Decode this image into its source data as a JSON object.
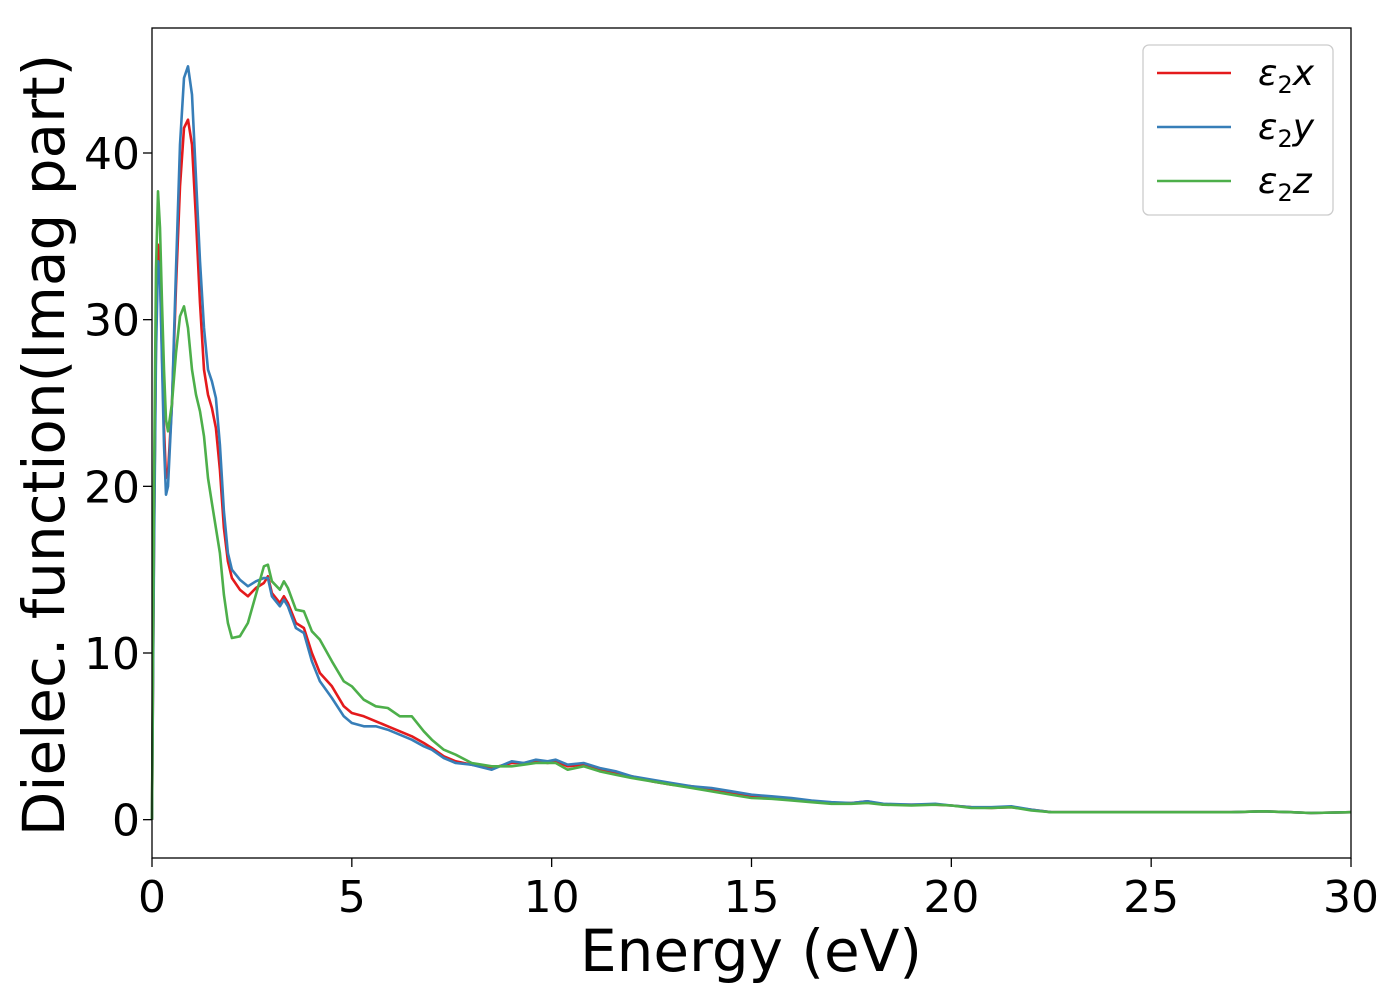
{
  "chart_data": {
    "type": "line",
    "title": "",
    "xlabel": "Energy (eV)",
    "ylabel": "Dielec. function(Imag part)",
    "xlim": [
      0,
      30
    ],
    "ylim": [
      -2.3,
      47.5
    ],
    "xticks": [
      0,
      5,
      10,
      15,
      20,
      25,
      30
    ],
    "yticks": [
      0,
      10,
      20,
      30,
      40
    ],
    "grid": false,
    "legend_position": "top-right",
    "series": [
      {
        "name": "ε2x",
        "legend_base": "ε",
        "legend_sub": "2",
        "legend_var": "x",
        "color": "#e41a1c",
        "points": [
          [
            0,
            0
          ],
          [
            0.05,
            17
          ],
          [
            0.1,
            29
          ],
          [
            0.15,
            34.5
          ],
          [
            0.2,
            33
          ],
          [
            0.25,
            28
          ],
          [
            0.3,
            23.5
          ],
          [
            0.35,
            20.5
          ],
          [
            0.4,
            20.8
          ],
          [
            0.5,
            25
          ],
          [
            0.6,
            32
          ],
          [
            0.7,
            38
          ],
          [
            0.8,
            41.5
          ],
          [
            0.9,
            42
          ],
          [
            1.0,
            40.5
          ],
          [
            1.1,
            36
          ],
          [
            1.2,
            31
          ],
          [
            1.3,
            27
          ],
          [
            1.4,
            25.5
          ],
          [
            1.5,
            24.7
          ],
          [
            1.6,
            23.5
          ],
          [
            1.7,
            21
          ],
          [
            1.8,
            17.5
          ],
          [
            1.9,
            15.5
          ],
          [
            2.0,
            14.5
          ],
          [
            2.2,
            13.8
          ],
          [
            2.4,
            13.4
          ],
          [
            2.6,
            13.9
          ],
          [
            2.8,
            14.2
          ],
          [
            2.9,
            14.6
          ],
          [
            3.0,
            13.6
          ],
          [
            3.2,
            13
          ],
          [
            3.3,
            13.4
          ],
          [
            3.4,
            13
          ],
          [
            3.6,
            11.8
          ],
          [
            3.8,
            11.5
          ],
          [
            4.0,
            10
          ],
          [
            4.2,
            8.8
          ],
          [
            4.5,
            8
          ],
          [
            4.8,
            6.8
          ],
          [
            5.0,
            6.4
          ],
          [
            5.3,
            6.2
          ],
          [
            5.6,
            5.9
          ],
          [
            5.9,
            5.6
          ],
          [
            6.2,
            5.3
          ],
          [
            6.5,
            5
          ],
          [
            6.8,
            4.6
          ],
          [
            7.0,
            4.3
          ],
          [
            7.3,
            3.8
          ],
          [
            7.6,
            3.5
          ],
          [
            8.0,
            3.3
          ],
          [
            8.5,
            3.1
          ],
          [
            9.0,
            3.4
          ],
          [
            9.3,
            3.4
          ],
          [
            9.6,
            3.5
          ],
          [
            9.9,
            3.4
          ],
          [
            10.1,
            3.5
          ],
          [
            10.4,
            3.2
          ],
          [
            10.8,
            3.3
          ],
          [
            11.2,
            3.0
          ],
          [
            11.6,
            2.8
          ],
          [
            12.0,
            2.6
          ],
          [
            12.5,
            2.3
          ],
          [
            13.0,
            2.1
          ],
          [
            13.5,
            2.0
          ],
          [
            14.0,
            1.8
          ],
          [
            14.5,
            1.6
          ],
          [
            15.0,
            1.4
          ],
          [
            15.5,
            1.3
          ],
          [
            16.0,
            1.2
          ],
          [
            16.5,
            1.1
          ],
          [
            17.0,
            1.0
          ],
          [
            17.5,
            1.0
          ],
          [
            17.9,
            1.1
          ],
          [
            18.3,
            0.9
          ],
          [
            19.0,
            0.9
          ],
          [
            19.6,
            0.9
          ],
          [
            20.0,
            0.85
          ],
          [
            20.5,
            0.75
          ],
          [
            21.0,
            0.7
          ],
          [
            21.5,
            0.75
          ],
          [
            22.0,
            0.6
          ],
          [
            22.5,
            0.45
          ],
          [
            23.0,
            0.45
          ],
          [
            24.0,
            0.45
          ],
          [
            25.0,
            0.45
          ],
          [
            26.0,
            0.45
          ],
          [
            27.0,
            0.45
          ],
          [
            27.8,
            0.5
          ],
          [
            28.5,
            0.45
          ],
          [
            29.0,
            0.4
          ],
          [
            30.0,
            0.45
          ]
        ]
      },
      {
        "name": "ε2y",
        "legend_base": "ε",
        "legend_sub": "2",
        "legend_var": "y",
        "color": "#377eb8",
        "points": [
          [
            0,
            0
          ],
          [
            0.05,
            16
          ],
          [
            0.1,
            28
          ],
          [
            0.15,
            33.5
          ],
          [
            0.2,
            32.5
          ],
          [
            0.25,
            27.5
          ],
          [
            0.3,
            22.5
          ],
          [
            0.35,
            19.5
          ],
          [
            0.4,
            20
          ],
          [
            0.5,
            25
          ],
          [
            0.6,
            33
          ],
          [
            0.7,
            40.5
          ],
          [
            0.8,
            44.5
          ],
          [
            0.9,
            45.2
          ],
          [
            1.0,
            43.5
          ],
          [
            1.1,
            38.5
          ],
          [
            1.2,
            33.5
          ],
          [
            1.3,
            29.5
          ],
          [
            1.4,
            27
          ],
          [
            1.5,
            26.3
          ],
          [
            1.6,
            25.3
          ],
          [
            1.7,
            22.5
          ],
          [
            1.8,
            18.5
          ],
          [
            1.9,
            16
          ],
          [
            2.0,
            15
          ],
          [
            2.2,
            14.4
          ],
          [
            2.4,
            14
          ],
          [
            2.6,
            14.3
          ],
          [
            2.8,
            14.5
          ],
          [
            2.9,
            14.5
          ],
          [
            3.0,
            13.4
          ],
          [
            3.2,
            12.8
          ],
          [
            3.3,
            13.2
          ],
          [
            3.4,
            12.8
          ],
          [
            3.6,
            11.5
          ],
          [
            3.8,
            11.2
          ],
          [
            4.0,
            9.5
          ],
          [
            4.2,
            8.3
          ],
          [
            4.5,
            7.3
          ],
          [
            4.8,
            6.2
          ],
          [
            5.0,
            5.8
          ],
          [
            5.3,
            5.6
          ],
          [
            5.6,
            5.6
          ],
          [
            5.9,
            5.4
          ],
          [
            6.2,
            5.1
          ],
          [
            6.5,
            4.8
          ],
          [
            6.8,
            4.4
          ],
          [
            7.0,
            4.2
          ],
          [
            7.3,
            3.7
          ],
          [
            7.6,
            3.4
          ],
          [
            8.0,
            3.3
          ],
          [
            8.5,
            3.0
          ],
          [
            9.0,
            3.5
          ],
          [
            9.3,
            3.4
          ],
          [
            9.6,
            3.6
          ],
          [
            9.9,
            3.5
          ],
          [
            10.1,
            3.6
          ],
          [
            10.4,
            3.3
          ],
          [
            10.8,
            3.4
          ],
          [
            11.2,
            3.1
          ],
          [
            11.6,
            2.9
          ],
          [
            12.0,
            2.6
          ],
          [
            12.5,
            2.4
          ],
          [
            13.0,
            2.2
          ],
          [
            13.5,
            2.0
          ],
          [
            14.0,
            1.9
          ],
          [
            14.5,
            1.7
          ],
          [
            15.0,
            1.5
          ],
          [
            15.5,
            1.4
          ],
          [
            16.0,
            1.3
          ],
          [
            16.5,
            1.15
          ],
          [
            17.0,
            1.05
          ],
          [
            17.5,
            1.0
          ],
          [
            17.9,
            1.1
          ],
          [
            18.3,
            0.95
          ],
          [
            19.0,
            0.9
          ],
          [
            19.6,
            0.95
          ],
          [
            20.0,
            0.85
          ],
          [
            20.5,
            0.75
          ],
          [
            21.0,
            0.75
          ],
          [
            21.5,
            0.8
          ],
          [
            22.0,
            0.6
          ],
          [
            22.5,
            0.45
          ],
          [
            23.0,
            0.45
          ],
          [
            24.0,
            0.45
          ],
          [
            25.0,
            0.45
          ],
          [
            26.0,
            0.45
          ],
          [
            27.0,
            0.45
          ],
          [
            27.8,
            0.5
          ],
          [
            28.5,
            0.45
          ],
          [
            29.0,
            0.4
          ],
          [
            30.0,
            0.45
          ]
        ]
      },
      {
        "name": "ε2z",
        "legend_base": "ε",
        "legend_sub": "2",
        "legend_var": "z",
        "color": "#4daf4a",
        "points": [
          [
            0,
            0
          ],
          [
            0.05,
            20
          ],
          [
            0.1,
            33
          ],
          [
            0.15,
            37.7
          ],
          [
            0.2,
            35.5
          ],
          [
            0.25,
            31
          ],
          [
            0.3,
            27
          ],
          [
            0.35,
            24
          ],
          [
            0.4,
            23.3
          ],
          [
            0.5,
            25
          ],
          [
            0.6,
            28
          ],
          [
            0.7,
            30.2
          ],
          [
            0.8,
            30.8
          ],
          [
            0.9,
            29.5
          ],
          [
            1.0,
            27
          ],
          [
            1.1,
            25.5
          ],
          [
            1.2,
            24.5
          ],
          [
            1.3,
            23
          ],
          [
            1.4,
            20.5
          ],
          [
            1.5,
            19
          ],
          [
            1.6,
            17.5
          ],
          [
            1.7,
            16
          ],
          [
            1.8,
            13.5
          ],
          [
            1.9,
            11.8
          ],
          [
            2.0,
            10.9
          ],
          [
            2.2,
            11.0
          ],
          [
            2.4,
            11.8
          ],
          [
            2.6,
            13.5
          ],
          [
            2.8,
            15.2
          ],
          [
            2.9,
            15.3
          ],
          [
            3.0,
            14.3
          ],
          [
            3.2,
            13.8
          ],
          [
            3.3,
            14.3
          ],
          [
            3.4,
            13.9
          ],
          [
            3.6,
            12.6
          ],
          [
            3.8,
            12.5
          ],
          [
            4.0,
            11.3
          ],
          [
            4.2,
            10.8
          ],
          [
            4.5,
            9.5
          ],
          [
            4.8,
            8.3
          ],
          [
            5.0,
            8.0
          ],
          [
            5.3,
            7.2
          ],
          [
            5.6,
            6.8
          ],
          [
            5.9,
            6.7
          ],
          [
            6.2,
            6.2
          ],
          [
            6.5,
            6.2
          ],
          [
            6.8,
            5.3
          ],
          [
            7.0,
            4.8
          ],
          [
            7.3,
            4.2
          ],
          [
            7.6,
            3.9
          ],
          [
            8.0,
            3.4
          ],
          [
            8.5,
            3.2
          ],
          [
            9.0,
            3.2
          ],
          [
            9.3,
            3.3
          ],
          [
            9.6,
            3.4
          ],
          [
            9.9,
            3.4
          ],
          [
            10.1,
            3.4
          ],
          [
            10.4,
            3.0
          ],
          [
            10.8,
            3.2
          ],
          [
            11.2,
            2.9
          ],
          [
            11.6,
            2.7
          ],
          [
            12.0,
            2.5
          ],
          [
            12.5,
            2.3
          ],
          [
            13.0,
            2.1
          ],
          [
            13.5,
            1.9
          ],
          [
            14.0,
            1.7
          ],
          [
            14.5,
            1.5
          ],
          [
            15.0,
            1.3
          ],
          [
            15.5,
            1.25
          ],
          [
            16.0,
            1.15
          ],
          [
            16.5,
            1.05
          ],
          [
            17.0,
            0.95
          ],
          [
            17.5,
            0.95
          ],
          [
            17.9,
            1.0
          ],
          [
            18.3,
            0.9
          ],
          [
            19.0,
            0.85
          ],
          [
            19.6,
            0.9
          ],
          [
            20.0,
            0.85
          ],
          [
            20.5,
            0.7
          ],
          [
            21.0,
            0.7
          ],
          [
            21.5,
            0.75
          ],
          [
            22.0,
            0.55
          ],
          [
            22.5,
            0.45
          ],
          [
            23.0,
            0.45
          ],
          [
            24.0,
            0.45
          ],
          [
            25.0,
            0.45
          ],
          [
            26.0,
            0.45
          ],
          [
            27.0,
            0.45
          ],
          [
            27.8,
            0.5
          ],
          [
            28.5,
            0.45
          ],
          [
            29.0,
            0.4
          ],
          [
            30.0,
            0.45
          ]
        ]
      }
    ]
  }
}
